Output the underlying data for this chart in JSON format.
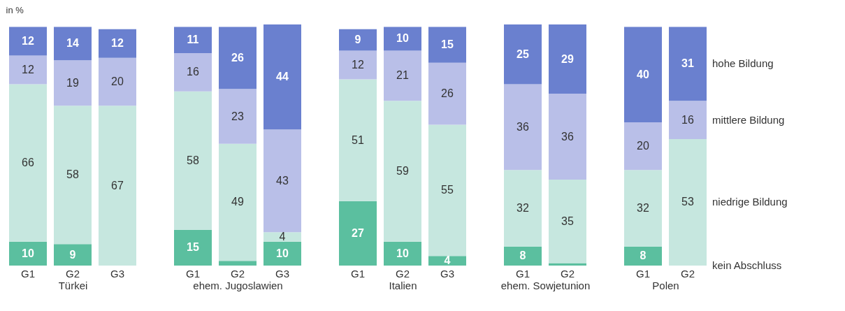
{
  "chart_data": [
    {
      "type": "bar",
      "stacked": true,
      "data_labels": true,
      "ylabel": "in %",
      "xlabel": "Türkei",
      "categories": [
        "G1",
        "G2",
        "G3"
      ],
      "series": [
        {
          "color": "#5bbf9f",
          "values": [
            10,
            9,
            null
          ]
        },
        {
          "color": "#c6e7df",
          "values": [
            66,
            58,
            67
          ]
        },
        {
          "color": "#b9bfe8",
          "values": [
            12,
            19,
            20
          ]
        },
        {
          "color": "#6a80cf",
          "values": [
            12,
            14,
            12
          ]
        }
      ]
    },
    {
      "type": "bar",
      "stacked": true,
      "xlabel": "ehem. Jugoslawien",
      "categories": [
        "G1",
        "G2",
        "G3"
      ],
      "series": [
        {
          "color": "#5bbf9f",
          "values": [
            15,
            2,
            10
          ],
          "value_labels": [
            "15",
            null,
            "10"
          ]
        },
        {
          "color": "#c6e7df",
          "values": [
            58,
            49,
            4
          ],
          "value_labels": [
            "58",
            "49",
            "4"
          ]
        },
        {
          "color": "#b9bfe8",
          "values": [
            16,
            23,
            43
          ],
          "value_labels": [
            "16",
            "23",
            "43"
          ]
        },
        {
          "color": "#6a80cf",
          "values": [
            11,
            26,
            44
          ],
          "value_labels": [
            "11",
            "26",
            "44"
          ]
        }
      ]
    },
    {
      "type": "bar",
      "stacked": true,
      "data_labels": true,
      "xlabel": "Italien",
      "categories": [
        "G1",
        "G2",
        "G3"
      ],
      "series": [
        {
          "color": "#5bbf9f",
          "values": [
            27,
            10,
            4
          ]
        },
        {
          "color": "#c6e7df",
          "values": [
            51,
            59,
            55
          ]
        },
        {
          "color": "#b9bfe8",
          "values": [
            12,
            21,
            26
          ]
        },
        {
          "color": "#6a80cf",
          "values": [
            9,
            10,
            15
          ]
        }
      ]
    },
    {
      "type": "bar",
      "stacked": true,
      "xlabel": "ehem. Sowjetunion",
      "categories": [
        "G1",
        "G2"
      ],
      "series": [
        {
          "color": "#5bbf9f",
          "values": [
            8,
            1
          ],
          "value_labels": [
            "8",
            null
          ]
        },
        {
          "color": "#c6e7df",
          "values": [
            32,
            35
          ],
          "value_labels": [
            "32",
            "35"
          ]
        },
        {
          "color": "#b9bfe8",
          "values": [
            36,
            36
          ],
          "value_labels": [
            "36",
            "36"
          ]
        },
        {
          "color": "#6a80cf",
          "values": [
            25,
            29
          ],
          "value_labels": [
            "25",
            "29"
          ]
        }
      ]
    },
    {
      "type": "bar",
      "stacked": true,
      "data_labels": true,
      "xlabel": "Polen",
      "legend": "right",
      "categories": [
        "G1",
        "G2"
      ],
      "series": [
        {
          "name": "kein Abschluss",
          "color": "#5bbf9f",
          "values": [
            8,
            null
          ]
        },
        {
          "name": "niedrige Bildung",
          "color": "#c6e7df",
          "values": [
            32,
            53
          ]
        },
        {
          "name": "mittlere Bildung",
          "color": "#b9bfe8",
          "values": [
            20,
            16
          ]
        },
        {
          "name": "hohe Bildung",
          "color": "#6a80cf",
          "values": [
            40,
            31
          ]
        }
      ]
    }
  ]
}
